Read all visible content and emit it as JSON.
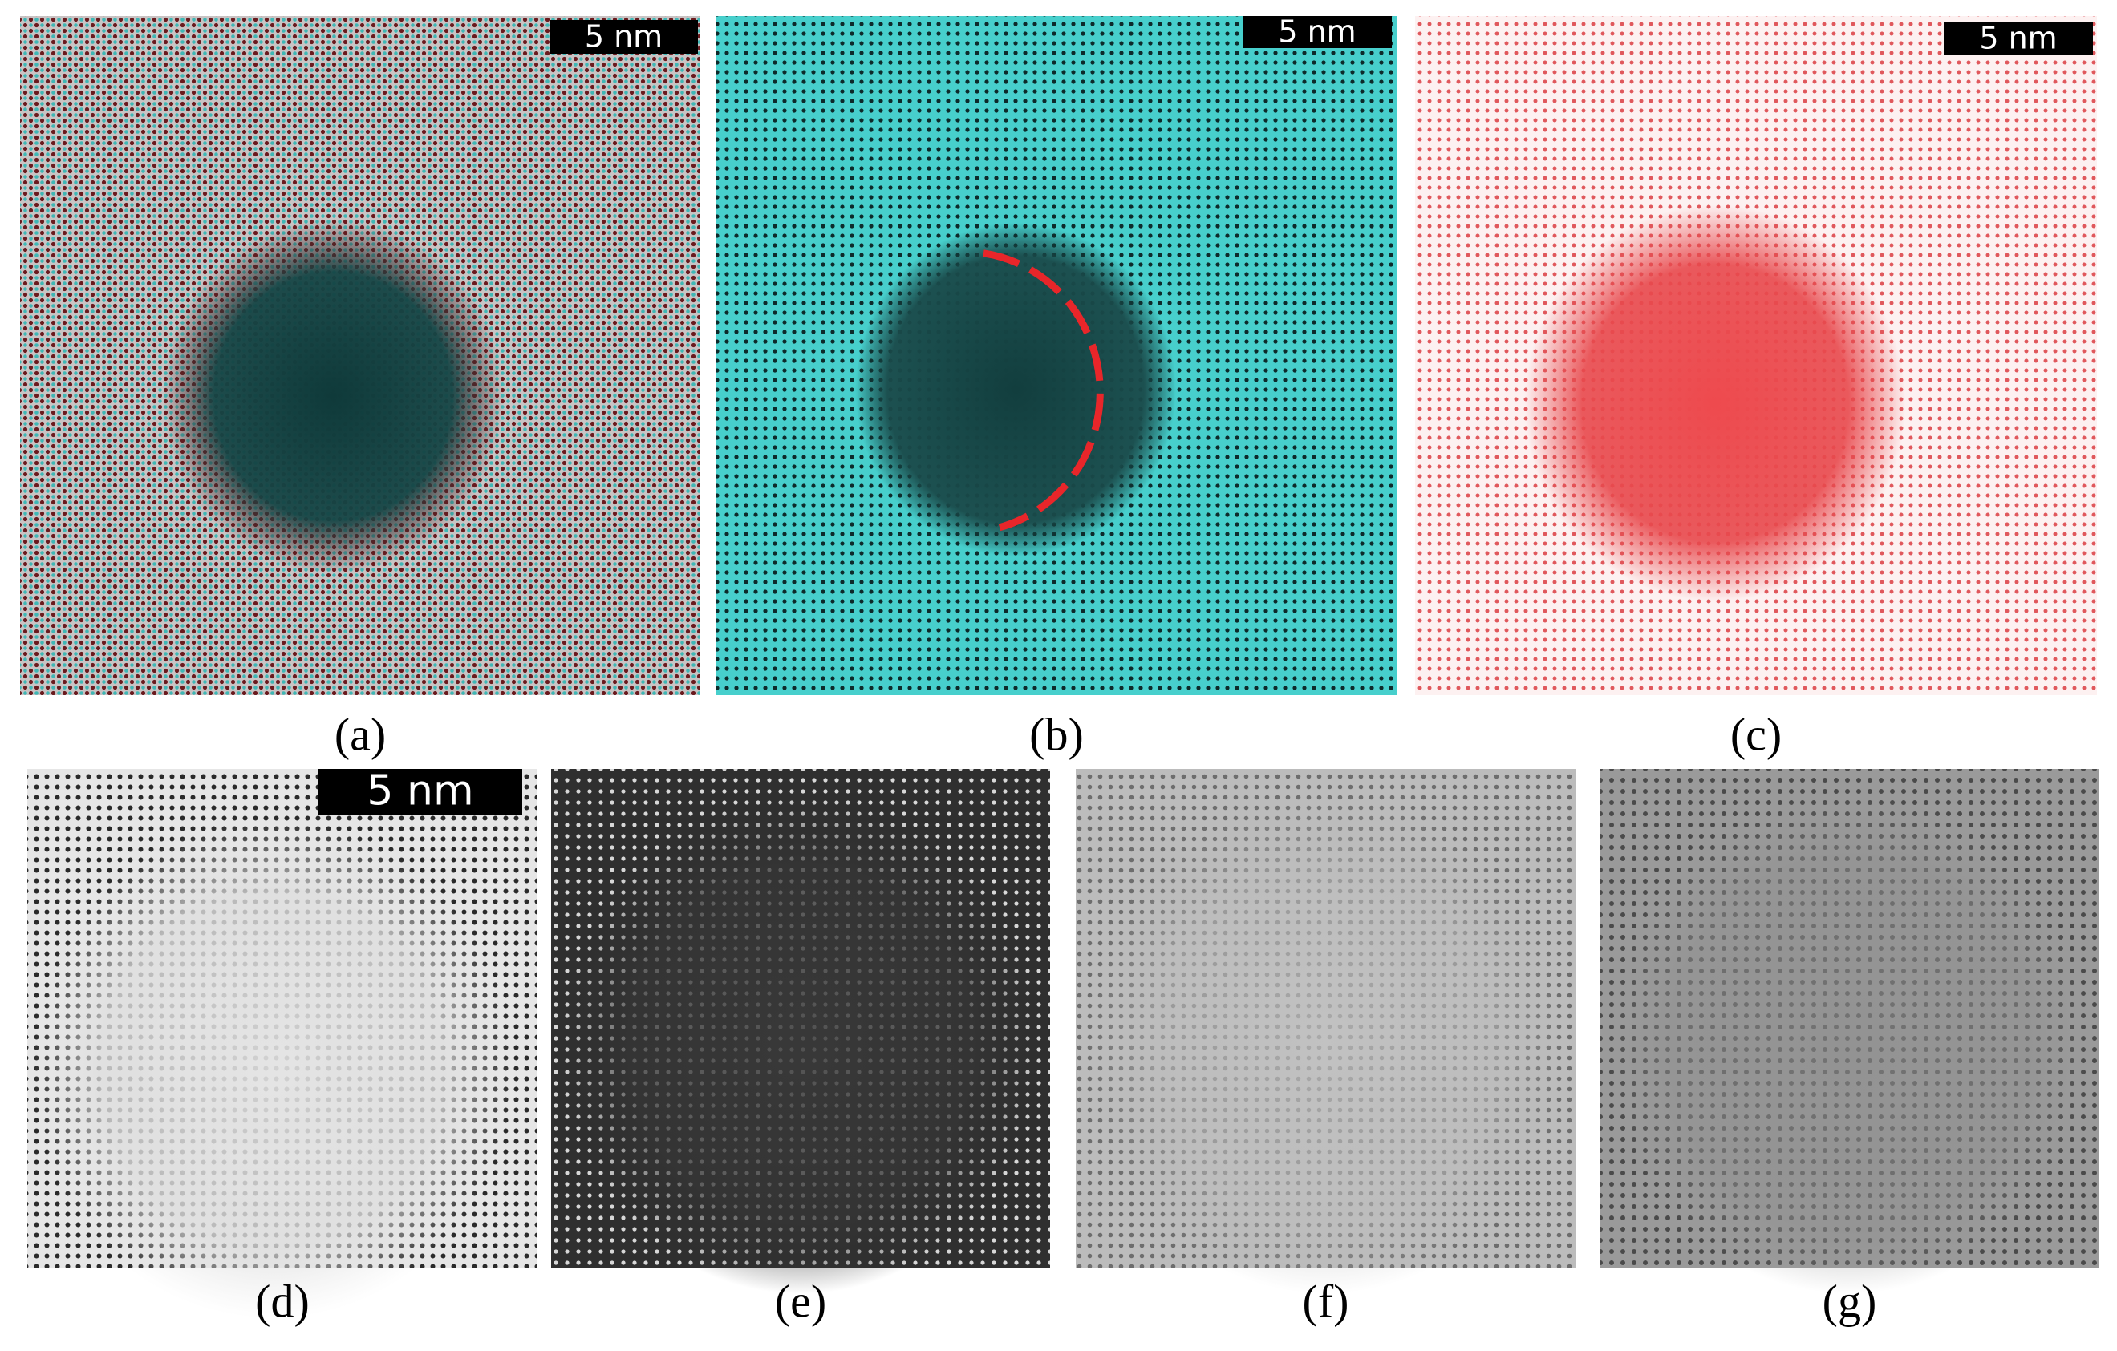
{
  "panels": [
    {
      "label": "(a)",
      "scale_bar": "5 nm"
    },
    {
      "label": "(b)",
      "scale_bar": "5 nm"
    },
    {
      "label": "(c)",
      "scale_bar": "5 nm"
    },
    {
      "label": "(d)",
      "scale_bar": "5 nm"
    },
    {
      "label": "(e)"
    },
    {
      "label": "(f)"
    },
    {
      "label": "(g)"
    }
  ]
}
